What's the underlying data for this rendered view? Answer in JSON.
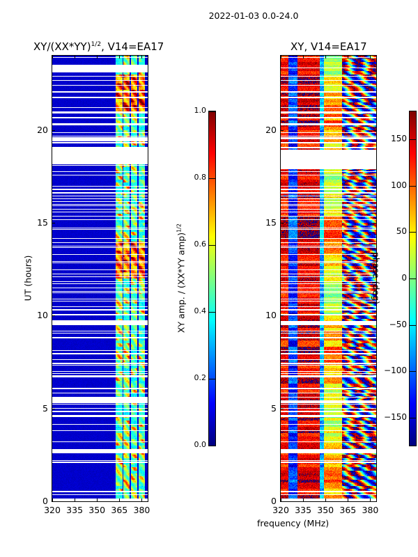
{
  "suptitle": "2022-01-03 0.0-24.0",
  "shared_xlabel": "frequency (MHz)",
  "chart_data": [
    {
      "type": "heatmap",
      "name": "amplitude",
      "title_main": "XY/(XX*YY)",
      "title_sup": "1/2",
      "title_suffix": ", V14=EA17",
      "xlabel": "frequency (MHz)",
      "ylabel": "UT (hours)",
      "xlim": [
        320,
        384
      ],
      "ylim": [
        0,
        24
      ],
      "xticks": [
        320,
        335,
        350,
        365,
        380
      ],
      "xtick_labels": [
        "320",
        "335",
        "350",
        "365",
        "380"
      ],
      "yticks": [
        0,
        5,
        10,
        15,
        20
      ],
      "ytick_labels": [
        "0",
        "5",
        "10",
        "15",
        "20"
      ],
      "colormap": "jet",
      "colorbar": {
        "label_main": "XY amp. / (XX*YY amp)",
        "label_sup": "1/2",
        "range": [
          0.0,
          1.0
        ],
        "ticks": [
          0.0,
          0.2,
          0.4,
          0.6,
          0.8,
          1.0
        ],
        "tick_labels": [
          "0.0",
          "0.2",
          "0.4",
          "0.6",
          "0.8",
          "1.0"
        ]
      },
      "background_level": 0.05,
      "bright_band_mhz": [
        362,
        382
      ],
      "bright_band_level_range": [
        0.3,
        0.9
      ],
      "flagged_intervals_hours": [
        [
          0.0,
          0.1
        ],
        [
          2.6,
          2.8
        ],
        [
          5.3,
          5.6
        ],
        [
          7.9,
          8.0
        ],
        [
          9.5,
          9.75
        ],
        [
          18.15,
          19.0
        ],
        [
          19.4,
          19.6
        ],
        [
          23.1,
          23.5
        ]
      ]
    },
    {
      "type": "heatmap",
      "name": "phase",
      "title_main": "XY, V14=EA17",
      "xlabel": "frequency (MHz)",
      "ylabel": "",
      "xlim": [
        320,
        384
      ],
      "ylim": [
        0,
        24
      ],
      "xticks": [
        320,
        335,
        350,
        365,
        380
      ],
      "xtick_labels": [
        "320",
        "335",
        "350",
        "365",
        "380"
      ],
      "yticks": [
        0,
        5,
        10,
        15,
        20
      ],
      "ytick_labels": [
        "0",
        "5",
        "10",
        "15",
        "20"
      ],
      "colormap": "jet",
      "colorbar": {
        "label_main": "phase (deg)",
        "range": [
          -180,
          180
        ],
        "ticks": [
          -150,
          -100,
          -50,
          0,
          50,
          100,
          150
        ],
        "tick_labels": [
          "−150",
          "−100",
          "−50",
          "0",
          "50",
          "100",
          "150"
        ]
      },
      "flagged_intervals_hours": [
        [
          0.0,
          0.1
        ],
        [
          2.6,
          2.8
        ],
        [
          5.3,
          5.45
        ],
        [
          7.9,
          8.0
        ],
        [
          9.5,
          9.7
        ],
        [
          17.9,
          18.9
        ],
        [
          19.5,
          19.6
        ]
      ]
    }
  ]
}
